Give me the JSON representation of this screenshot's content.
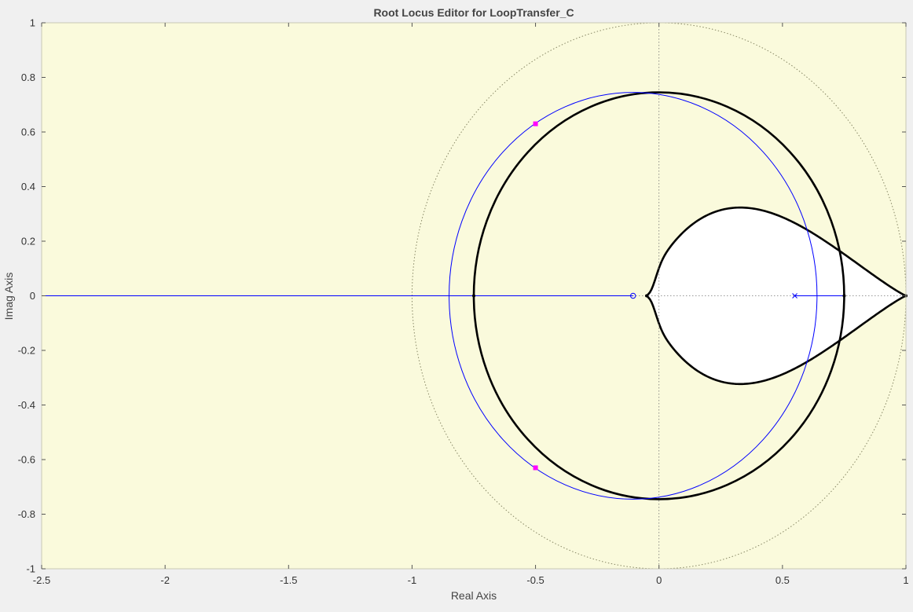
{
  "window": {
    "title": "Root Locus Editor for LoopTransfer_C"
  },
  "chart_data": {
    "type": "root-locus",
    "title": "Root Locus Editor for LoopTransfer_C",
    "xlabel": "Real Axis",
    "ylabel": "Imag Axis",
    "xlim": [
      -2.5,
      1
    ],
    "ylim": [
      -1,
      1
    ],
    "xticks": [
      "-2.5",
      "-2",
      "-1.5",
      "-1",
      "-0.5",
      "0",
      "0.5",
      "1"
    ],
    "yticks": [
      "1",
      "0.8",
      "0.6",
      "0.4",
      "0.2",
      "0",
      "-0.2",
      "-0.4",
      "-0.6",
      "-0.8",
      "-1"
    ],
    "grid": "dotted zero lines and unit circle",
    "background_color": "#fafadc",
    "colors": {
      "locus": "#0000ff",
      "damping_boundary": "#000000",
      "closed_loop_poles": "#ff00ff",
      "unit_circle": "#888866"
    },
    "open_loop_zeros": [
      [
        -0.105,
        0
      ]
    ],
    "open_loop_poles": [
      [
        0.55,
        0
      ]
    ],
    "closed_loop_poles": [
      [
        -0.5,
        0.63
      ],
      [
        -0.5,
        -0.63
      ]
    ],
    "locus": {
      "real_axis_segment": [
        -2.5,
        -0.105
      ],
      "circle_center": [
        -0.105,
        0
      ],
      "circle_radius": 0.745,
      "branch_segment": [
        0.55,
        0.75
      ]
    },
    "boundary_curves": {
      "outer_loop": {
        "center": [
          0,
          0
        ],
        "radius_x": 0.75,
        "radius_y": 0.745
      },
      "inner_region_tip": [
        1,
        0
      ],
      "inner_region_left": [
        -0.05,
        0
      ],
      "inner_region_max_imag": 0.335
    }
  }
}
